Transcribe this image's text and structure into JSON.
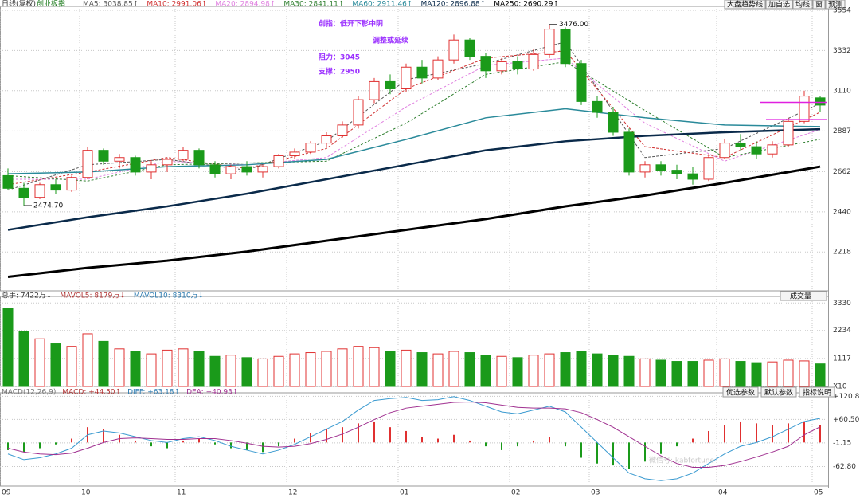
{
  "header": {
    "period": "日线(复权)",
    "symbol": "创业板指",
    "buttons": [
      "大盘趋势线",
      "加自选",
      "均线",
      "窗",
      "预测"
    ]
  },
  "chart_data": [
    {
      "type": "candlestick",
      "up_color": "#e03030",
      "down_color": "#1a9a1a",
      "open": [
        2640,
        2570,
        2520,
        2590,
        2560,
        2630,
        2780,
        2720,
        2740,
        2660,
        2700,
        2730,
        2780,
        2700,
        2650,
        2690,
        2660,
        2690,
        2750,
        2770,
        2820,
        2860,
        2920,
        3060,
        3160,
        3120,
        3240,
        3180,
        3280,
        3390,
        3300,
        3220,
        3270,
        3230,
        3310,
        3450,
        3260,
        3050,
        2990,
        2880,
        2660,
        2700,
        2670,
        2650,
        2620,
        2740,
        2820,
        2800,
        2760,
        2810,
        2940,
        3070
      ],
      "high": [
        2680,
        2600,
        2600,
        2620,
        2640,
        2800,
        2790,
        2760,
        2750,
        2720,
        2740,
        2800,
        2790,
        2720,
        2700,
        2720,
        2700,
        2760,
        2790,
        2830,
        2880,
        2940,
        3080,
        3180,
        3200,
        3260,
        3280,
        3300,
        3420,
        3400,
        3320,
        3290,
        3300,
        3340,
        3476,
        3460,
        3280,
        3080,
        3020,
        2900,
        2720,
        2720,
        2700,
        2690,
        2760,
        2840,
        2870,
        2830,
        2830,
        2960,
        3110,
        3080
      ],
      "low": [
        2560,
        2474.7,
        2510,
        2540,
        2550,
        2620,
        2700,
        2680,
        2640,
        2620,
        2660,
        2720,
        2680,
        2630,
        2620,
        2640,
        2630,
        2680,
        2730,
        2760,
        2800,
        2850,
        2900,
        3040,
        3090,
        3100,
        3150,
        3170,
        3260,
        3280,
        3180,
        3200,
        3200,
        3220,
        3290,
        3240,
        3030,
        2960,
        2860,
        2640,
        2630,
        2640,
        2620,
        2590,
        2610,
        2730,
        2780,
        2730,
        2740,
        2800,
        2930,
        2990
      ],
      "close": [
        2570,
        2520,
        2590,
        2560,
        2630,
        2780,
        2720,
        2740,
        2660,
        2700,
        2730,
        2780,
        2700,
        2650,
        2690,
        2660,
        2690,
        2750,
        2770,
        2820,
        2860,
        2920,
        3060,
        3160,
        3120,
        3240,
        3180,
        3280,
        3390,
        3300,
        3220,
        3270,
        3230,
        3310,
        3450,
        3260,
        3050,
        2990,
        2880,
        2660,
        2700,
        2670,
        2650,
        2620,
        2740,
        2820,
        2800,
        2760,
        2810,
        2940,
        3080,
        3030
      ],
      "ylim": [
        2003,
        3576
      ],
      "yticks": [
        3554,
        3332,
        3110,
        2887,
        2662,
        2440,
        2218
      ],
      "grid": true,
      "ma_x": [
        0,
        5,
        10,
        15,
        20,
        25,
        30,
        35,
        40,
        45,
        51
      ],
      "series": [
        {
          "name": "MA5: 3038.85↑",
          "color": "#555555",
          "width": 1,
          "values": [
            2560,
            2700,
            2730,
            2670,
            2830,
            3170,
            3260,
            3380,
            2740,
            2790,
            3040
          ]
        },
        {
          "name": "MA10: 2991.06↑",
          "color": "#d03030",
          "width": 1,
          "values": [
            2590,
            2660,
            2740,
            2680,
            2790,
            3120,
            3290,
            3330,
            2800,
            2740,
            2991
          ]
        },
        {
          "name": "MA20: 2894.98↑",
          "color": "#e080e0",
          "width": 1,
          "values": [
            2620,
            2620,
            2720,
            2700,
            2740,
            3020,
            3250,
            3290,
            2930,
            2720,
            2895
          ]
        },
        {
          "name": "MA30: 2841.11↑",
          "color": "#2f7f2f",
          "width": 1,
          "values": [
            2640,
            2610,
            2700,
            2710,
            2720,
            2930,
            3200,
            3270,
            3000,
            2740,
            2841
          ]
        },
        {
          "name": "MA60: 2911.46↑",
          "color": "#2a8a9a",
          "width": 1.5,
          "values": [
            2650,
            2660,
            2690,
            2700,
            2730,
            2840,
            2960,
            3010,
            2960,
            2920,
            2911
          ]
        },
        {
          "name": "MA120: 2896.88↑",
          "color": "#0a2a4a",
          "width": 2.5,
          "values": [
            2340,
            2410,
            2470,
            2540,
            2620,
            2700,
            2780,
            2830,
            2860,
            2880,
            2897
          ]
        },
        {
          "name": "MA250: 2690.29↑",
          "color": "#000000",
          "width": 3,
          "values": [
            2080,
            2130,
            2170,
            2220,
            2280,
            2340,
            2400,
            2470,
            2530,
            2600,
            2690
          ]
        }
      ],
      "high_label": {
        "index": 34,
        "label": "3476.00"
      },
      "low_label": {
        "index": 1,
        "label": "2474.70"
      },
      "levels": [
        3045,
        2950
      ],
      "level_color": "#e020e0",
      "notes": [
        "创指：低开下影中阴",
        "调整或延续",
        "阻力：3045",
        "支撑：2950"
      ],
      "note_color": "#9b30ff"
    },
    {
      "type": "bar",
      "title": "成交量",
      "header": [
        "总手: 7422万↓",
        "MAVOL5: 8179万↓",
        "MAVOL10: 8310万↓"
      ],
      "values": [
        3100,
        2200,
        1900,
        1700,
        1600,
        2100,
        1800,
        1500,
        1400,
        1300,
        1450,
        1500,
        1400,
        1200,
        1250,
        1150,
        1100,
        1200,
        1300,
        1350,
        1400,
        1500,
        1600,
        1550,
        1400,
        1450,
        1350,
        1300,
        1400,
        1350,
        1250,
        1200,
        1150,
        1250,
        1300,
        1350,
        1400,
        1300,
        1250,
        1200,
        1100,
        1050,
        1000,
        1000,
        1050,
        1100,
        1000,
        950,
        980,
        1050,
        1020,
        900
      ],
      "ylim": [
        0,
        3593
      ],
      "yticks": [
        3330,
        2234,
        1117,
        {
          "value": 0,
          "label": "X10"
        }
      ]
    },
    {
      "type": "macd",
      "header": [
        "MACD(12,26,9)",
        "MACD: +44.50↑",
        "DIFF: +63.18↑",
        "DEA: +40.93↑"
      ],
      "buttons": [
        "优选参数",
        "默认参数",
        "指标说明"
      ],
      "values": [
        -20,
        -25,
        -15,
        -5,
        10,
        40,
        35,
        20,
        5,
        -10,
        -15,
        5,
        10,
        -5,
        -15,
        -20,
        -25,
        -10,
        10,
        25,
        35,
        40,
        50,
        55,
        40,
        30,
        15,
        10,
        20,
        5,
        -10,
        -20,
        -10,
        5,
        15,
        -10,
        -40,
        -55,
        -60,
        -70,
        -50,
        -30,
        -10,
        10,
        30,
        45,
        55,
        50,
        45,
        50,
        55,
        44.5
      ],
      "series": [
        {
          "name": "DIFF",
          "color": "#3a9ad0",
          "values": [
            -30,
            -45,
            -40,
            -30,
            -15,
            20,
            30,
            25,
            15,
            5,
            0,
            10,
            15,
            5,
            -10,
            -20,
            -30,
            -20,
            -5,
            15,
            35,
            55,
            85,
            110,
            115,
            118,
            110,
            112,
            120,
            110,
            95,
            80,
            75,
            85,
            95,
            80,
            40,
            0,
            -40,
            -80,
            -95,
            -100,
            -95,
            -80,
            -55,
            -30,
            -10,
            0,
            15,
            35,
            55,
            63.18
          ]
        },
        {
          "name": "DEA",
          "color": "#a03090",
          "values": [
            -15,
            -25,
            -30,
            -32,
            -28,
            -15,
            0,
            10,
            12,
            10,
            8,
            8,
            10,
            10,
            5,
            -2,
            -10,
            -12,
            -10,
            -3,
            8,
            22,
            40,
            60,
            78,
            90,
            95,
            100,
            105,
            106,
            104,
            98,
            92,
            90,
            90,
            88,
            78,
            60,
            40,
            15,
            -10,
            -35,
            -55,
            -65,
            -65,
            -60,
            -50,
            -38,
            -25,
            -10,
            20,
            40.93
          ]
        }
      ],
      "ylim": [
        -114,
        130
      ],
      "yticks": [
        {
          "value": 120.8,
          "label": "+120.8"
        },
        {
          "value": 60.5,
          "label": "+60.50"
        },
        -1.15,
        {
          "value": -62.8,
          "label": "-62.80"
        }
      ]
    }
  ],
  "month_ticks": [
    {
      "value": 0,
      "label": "09"
    },
    {
      "value": 5,
      "label": "10"
    },
    {
      "value": 11,
      "label": "11"
    },
    {
      "value": 18,
      "label": "12"
    },
    {
      "value": 25,
      "label": "01"
    },
    {
      "value": 32,
      "label": "02"
    },
    {
      "value": 37,
      "label": "03"
    },
    {
      "value": 45,
      "label": "04"
    },
    {
      "value": 51,
      "label": "05"
    }
  ],
  "watermark": "微信号: kabfortune"
}
